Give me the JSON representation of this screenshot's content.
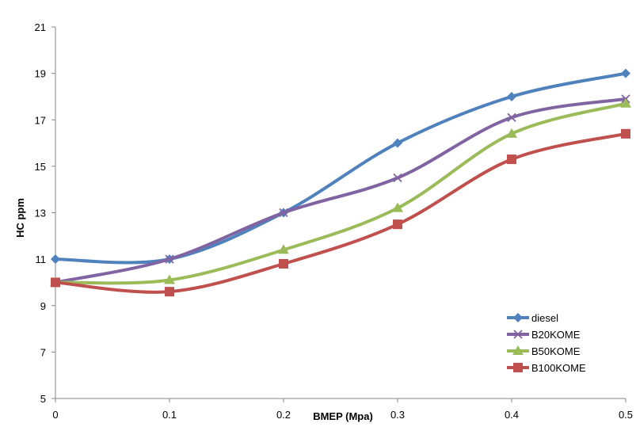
{
  "chart_data": {
    "type": "line",
    "smooth": true,
    "xlabel": "BMEP (Mpa)",
    "ylabel": "HC ppm",
    "x": [
      0,
      0.1,
      0.2,
      0.3,
      0.4,
      0.5
    ],
    "x_ticks": [
      "0",
      "0.1",
      "0.2",
      "0.3",
      "0.4",
      "0.5"
    ],
    "y_ticks": [
      "5",
      "7",
      "9",
      "11",
      "13",
      "15",
      "17",
      "19",
      "21"
    ],
    "ylim": [
      5,
      21
    ],
    "xlim": [
      0,
      0.5
    ],
    "grid": false,
    "legend_position": "bottom-right",
    "series": [
      {
        "name": "diesel",
        "color": "#4F81BD",
        "marker": "diamond",
        "values": [
          11,
          11,
          13,
          16,
          18,
          19
        ]
      },
      {
        "name": "B20KOME",
        "color": "#8064A2",
        "marker": "x",
        "values": [
          10,
          11,
          13,
          14.5,
          17.1,
          17.9
        ]
      },
      {
        "name": "B50KOME",
        "color": "#9BBB59",
        "marker": "triangle",
        "values": [
          10,
          10.1,
          11.4,
          13.2,
          16.4,
          17.7
        ]
      },
      {
        "name": "B100KOME",
        "color": "#C0504D",
        "marker": "square",
        "values": [
          10,
          9.6,
          10.8,
          12.5,
          15.3,
          16.4
        ]
      }
    ]
  }
}
